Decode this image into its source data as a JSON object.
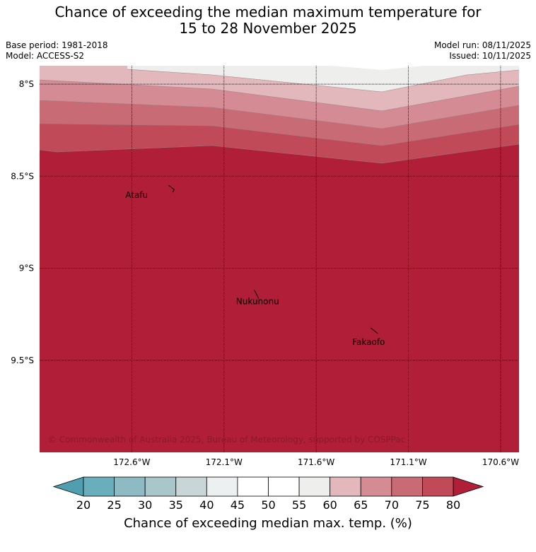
{
  "title": {
    "line1": "Chance of exceeding the median maximum temperature for",
    "line2": "15 to 28 November 2025"
  },
  "meta": {
    "base_period": "Base period: 1981-2018",
    "model": "Model: ACCESS-S2",
    "model_run": "Model run: 08/11/2025",
    "issued": "Issued: 10/11/2025"
  },
  "map": {
    "lat_labels": [
      "8°S",
      "8.5°S",
      "9°S",
      "9.5°S"
    ],
    "lat_values": [
      -8.0,
      -8.5,
      -9.0,
      -9.5
    ],
    "lon_labels": [
      "172.6°W",
      "172.1°W",
      "171.6°W",
      "171.1°W",
      "170.6°W"
    ],
    "lon_values": [
      -172.6,
      -172.1,
      -171.6,
      -171.1,
      -170.6
    ],
    "lon_range": [
      -173.1,
      -170.5
    ],
    "lat_range": [
      -7.9,
      -10.0
    ],
    "places": [
      {
        "name": "Atafu",
        "lon": -172.52,
        "lat": -8.58
      },
      {
        "name": "Nukunonu",
        "lon": -171.82,
        "lat": -9.18
      },
      {
        "name": "Fakaofo",
        "lon": -171.22,
        "lat": -9.37
      }
    ],
    "copyright": "© Commonwealth of Australia 2025, Bureau of Meteorology, supported by COSPPac"
  },
  "colorbar": {
    "ticks": [
      "20",
      "25",
      "30",
      "35",
      "40",
      "45",
      "50",
      "55",
      "60",
      "65",
      "70",
      "75",
      "80"
    ],
    "colors": [
      "#68aebb",
      "#8ebac3",
      "#a9c7cb",
      "#c8d6d8",
      "#ecf0f1",
      "#ffffff",
      "#ffffff",
      "#eeeeec",
      "#e2b8bd",
      "#d58b94",
      "#c86b74",
      "#c04a57"
    ],
    "under_color": "#4f9fae",
    "over_color": "#b01e38",
    "label": "Chance of exceeding median max. temp. (%)"
  },
  "bands": {
    "colors": [
      "#eeeeec",
      "#e2b8bd",
      "#d58b94",
      "#c86b74",
      "#c04a57",
      "#b01e38"
    ],
    "values": [
      "55-60",
      "60-65",
      "65-70",
      "70-75",
      "75-80",
      ">80"
    ]
  }
}
